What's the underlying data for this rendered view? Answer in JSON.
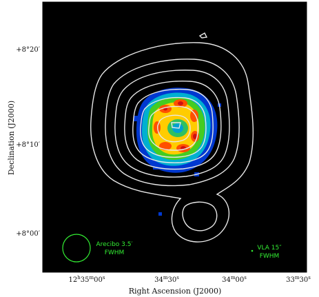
{
  "axes": {
    "x_title": "Right Ascension (J2000)",
    "y_title": "Declination (J2000)",
    "x_ticks": [
      {
        "h": "12",
        "m": "35",
        "s": "00",
        "label": "12h35m00s"
      },
      {
        "m": "34",
        "s": "30",
        "label": "34m30s"
      },
      {
        "m": "34",
        "s": "00",
        "label": "34m00s"
      },
      {
        "m": "33",
        "s": "30",
        "label": "33m30s"
      }
    ],
    "y_ticks": [
      {
        "label": "+8°20′"
      },
      {
        "label": "+8°10′"
      },
      {
        "label": "+8°00′"
      }
    ]
  },
  "beams": {
    "arecibo": {
      "line1": "Arecibo 3.5′",
      "line2": "FWHM"
    },
    "vla": {
      "line1": "VLA 15″",
      "line2": "FWHM"
    }
  },
  "colors": {
    "background": "#000000",
    "contour": "#e8e8e8",
    "beam_label": "#33ee33",
    "frame": "#000000"
  }
}
